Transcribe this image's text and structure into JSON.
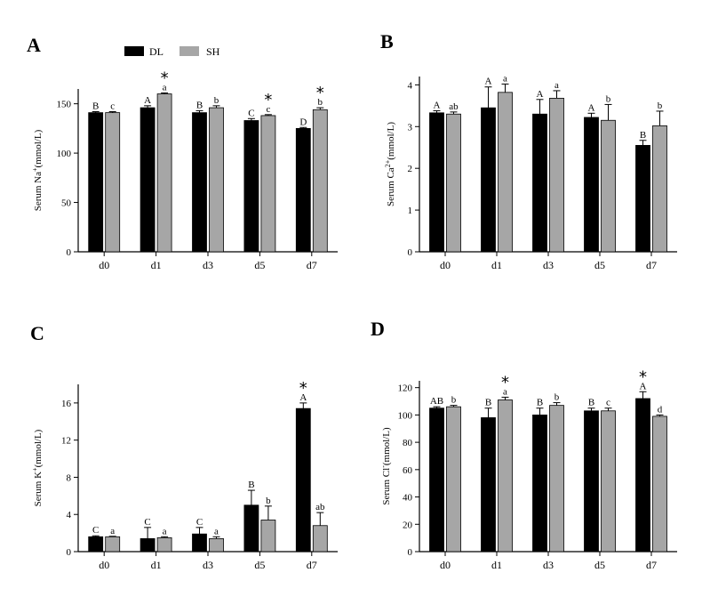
{
  "legend": {
    "series": [
      {
        "name": "DL",
        "color": "#000000"
      },
      {
        "name": "SH",
        "color": "#a6a6a6"
      }
    ]
  },
  "colors": {
    "dl": "#000000",
    "sh": "#a6a6a6",
    "axis": "#000000"
  },
  "chart_data": [
    {
      "type": "bar",
      "panel": "A",
      "ylabel_parts": [
        "Serum Na",
        "+",
        "(mmol/L)"
      ],
      "categories": [
        "d0",
        "d1",
        "d3",
        "d5",
        "d7"
      ],
      "ylim": [
        0,
        165
      ],
      "yticks": [
        0,
        50,
        100,
        150
      ],
      "series": [
        {
          "name": "DL",
          "values": [
            141,
            146,
            141,
            133,
            125
          ],
          "errors": [
            1,
            2,
            2,
            2,
            1
          ],
          "letters": [
            "B",
            "A",
            "B",
            "C",
            "D"
          ],
          "stars": [
            false,
            false,
            false,
            false,
            false
          ]
        },
        {
          "name": "SH",
          "values": [
            141,
            160,
            146,
            138,
            144
          ],
          "errors": [
            1,
            1,
            2,
            1,
            2
          ],
          "letters": [
            "c",
            "a",
            "b",
            "c",
            "b"
          ],
          "stars": [
            false,
            true,
            false,
            true,
            true
          ]
        }
      ]
    },
    {
      "type": "bar",
      "panel": "B",
      "ylabel_parts": [
        "Serum Ca",
        "2+",
        "(mmol/L)"
      ],
      "categories": [
        "d0",
        "d1",
        "d3",
        "d5",
        "d7"
      ],
      "ylim": [
        0,
        4.2
      ],
      "yticks": [
        0,
        1,
        2,
        3,
        4
      ],
      "series": [
        {
          "name": "DL",
          "values": [
            3.33,
            3.45,
            3.3,
            3.22,
            2.55
          ],
          "errors": [
            0.05,
            0.5,
            0.35,
            0.1,
            0.12
          ],
          "letters": [
            "A",
            "A",
            "A",
            "A",
            "B"
          ],
          "stars": [
            false,
            false,
            false,
            false,
            false
          ]
        },
        {
          "name": "SH",
          "values": [
            3.3,
            3.82,
            3.68,
            3.15,
            3.02
          ],
          "errors": [
            0.05,
            0.2,
            0.18,
            0.38,
            0.35
          ],
          "letters": [
            "ab",
            "a",
            "a",
            "b",
            "b"
          ],
          "stars": [
            false,
            false,
            false,
            false,
            false
          ]
        }
      ]
    },
    {
      "type": "bar",
      "panel": "C",
      "ylabel_parts": [
        "Serum K",
        "+",
        "(mmol/L)"
      ],
      "categories": [
        "d0",
        "d1",
        "d3",
        "d5",
        "d7"
      ],
      "ylim": [
        0,
        18
      ],
      "yticks": [
        0,
        4,
        8,
        12,
        16
      ],
      "series": [
        {
          "name": "DL",
          "values": [
            1.6,
            1.4,
            1.9,
            5.0,
            15.4
          ],
          "errors": [
            0.1,
            1.2,
            0.7,
            1.6,
            0.6
          ],
          "letters": [
            "C",
            "C",
            "C",
            "B",
            "A"
          ],
          "stars": [
            false,
            false,
            false,
            false,
            true
          ]
        },
        {
          "name": "SH",
          "values": [
            1.6,
            1.5,
            1.4,
            3.4,
            2.8
          ],
          "errors": [
            0.05,
            0.1,
            0.2,
            1.5,
            1.4
          ],
          "letters": [
            "a",
            "a",
            "a",
            "b",
            "ab"
          ],
          "stars": [
            false,
            false,
            false,
            false,
            false
          ]
        }
      ]
    },
    {
      "type": "bar",
      "panel": "D",
      "ylabel_parts": [
        "Serum Cl",
        "-",
        "(mmol/L)"
      ],
      "categories": [
        "d0",
        "d1",
        "d3",
        "d5",
        "d7"
      ],
      "ylim": [
        0,
        125
      ],
      "yticks": [
        0,
        20,
        40,
        60,
        80,
        100,
        120
      ],
      "series": [
        {
          "name": "DL",
          "values": [
            105,
            98,
            100,
            103,
            112
          ],
          "errors": [
            1,
            7,
            5,
            2,
            5
          ],
          "letters": [
            "AB",
            "B",
            "B",
            "B",
            "A"
          ],
          "stars": [
            false,
            false,
            false,
            false,
            true
          ]
        },
        {
          "name": "SH",
          "values": [
            106,
            111,
            107,
            103,
            99
          ],
          "errors": [
            1,
            2,
            2,
            2,
            1
          ],
          "letters": [
            "b",
            "a",
            "b",
            "c",
            "d"
          ],
          "stars": [
            false,
            true,
            false,
            false,
            false
          ]
        }
      ]
    }
  ]
}
